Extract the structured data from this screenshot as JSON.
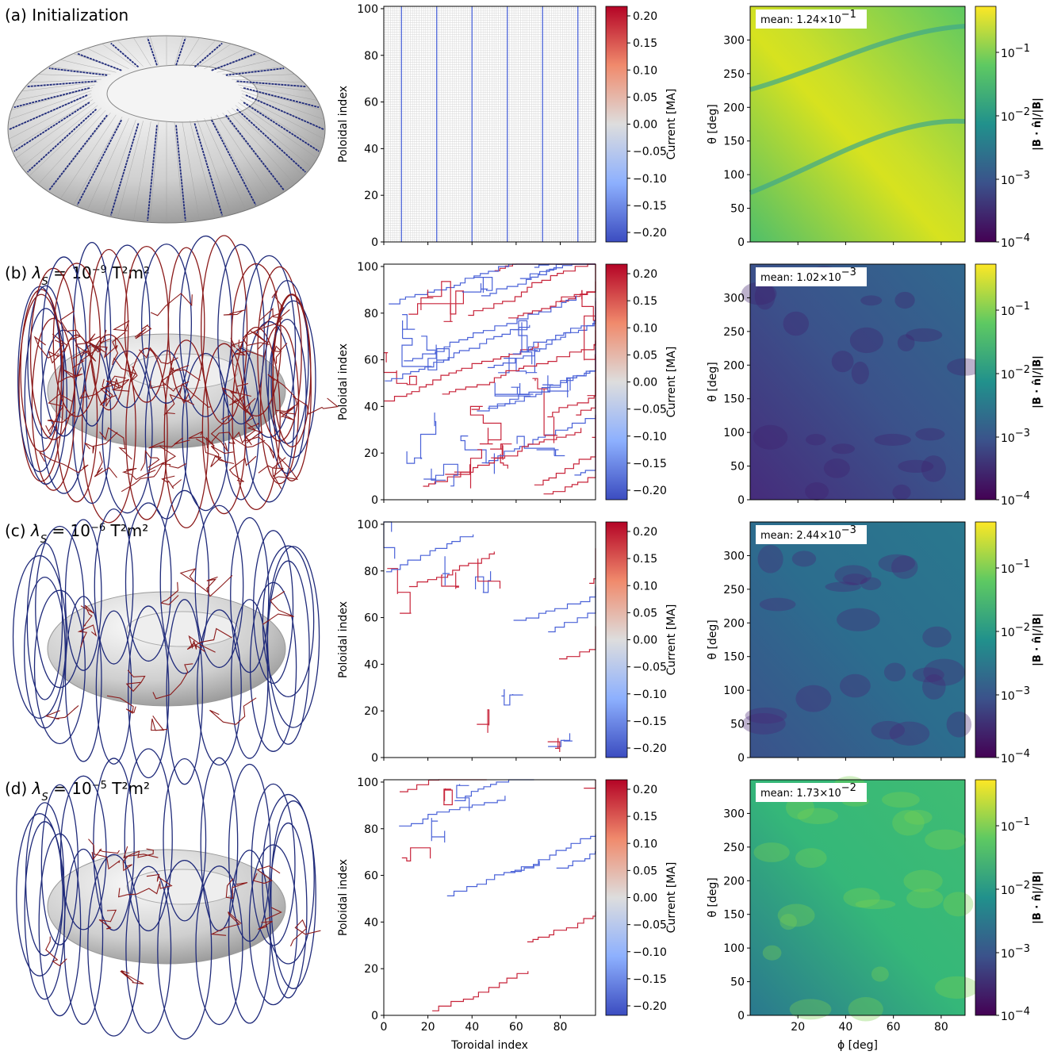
{
  "figure": {
    "rows": [
      {
        "label_prefix": "(a) ",
        "label_main": "Initialization",
        "lambda_exp": "",
        "unit_suffix": "",
        "mean_text": "mean: 1.24×10",
        "mean_exp": "−1"
      },
      {
        "label_prefix": "(b) ",
        "label_main": "λ",
        "lambda_exp": "−9",
        "unit_suffix": " T²m²",
        "mean_text": "mean: 1.02×10",
        "mean_exp": "−3"
      },
      {
        "label_prefix": "(c) ",
        "label_main": "λ",
        "lambda_exp": "−6",
        "unit_suffix": " T²m²",
        "mean_text": "mean: 2.44×10",
        "mean_exp": "−3"
      },
      {
        "label_prefix": "(d) ",
        "label_main": "λ",
        "lambda_exp": "−5",
        "unit_suffix": " T²m²",
        "mean_text": "mean: 1.73×10",
        "mean_exp": "−2"
      }
    ],
    "lambda_sub": "S",
    "lambda_eq": " = 10"
  },
  "chart_data": [
    {
      "type": "heatmap",
      "name": "current-map",
      "xlabel": "Toroidal index",
      "ylabel": "Poloidal index",
      "xlim": [
        0,
        96
      ],
      "ylim": [
        0,
        101
      ],
      "xticks": [
        0,
        20,
        40,
        60,
        80
      ],
      "yticks": [
        0,
        20,
        40,
        60,
        80,
        100
      ],
      "colorbar": {
        "label": "Current [MA]",
        "colormap": "coolwarm",
        "range": [
          -0.2,
          0.2
        ],
        "ticks": [
          "0.20",
          "0.15",
          "0.10",
          "0.05",
          "0.00",
          "−0.05",
          "−0.10",
          "−0.15",
          "−0.20"
        ],
        "colors": {
          "neg": "#3b4cc0",
          "zero": "#dddddd",
          "pos": "#b40426"
        }
      },
      "panels": [
        {
          "row": "a",
          "coil_toroidal_indices": [
            8,
            24,
            40,
            56,
            72,
            88
          ]
        },
        {
          "row": "b"
        },
        {
          "row": "c"
        },
        {
          "row": "d"
        }
      ]
    },
    {
      "type": "heatmap",
      "name": "normal-field-error",
      "xlabel": "ϕ [deg]",
      "ylabel": "θ [deg]",
      "xlim": [
        0,
        90
      ],
      "ylim": [
        0,
        350
      ],
      "xticks": [
        20,
        40,
        60,
        80
      ],
      "yticks": [
        0,
        50,
        100,
        150,
        200,
        250,
        300
      ],
      "colorbar": {
        "label": "|B · n̂|/|B|",
        "scale": "log",
        "colormap": "viridis",
        "range": [
          0.0001,
          0.5
        ],
        "ticks": [
          {
            "base": "10",
            "exp": "−1"
          },
          {
            "base": "10",
            "exp": "−2"
          },
          {
            "base": "10",
            "exp": "−3"
          },
          {
            "base": "10",
            "exp": "−4"
          }
        ]
      },
      "panels": [
        {
          "row": "a",
          "mean": "1.24×10⁻¹"
        },
        {
          "row": "b",
          "mean": "1.02×10⁻³"
        },
        {
          "row": "c",
          "mean": "2.44×10⁻³"
        },
        {
          "row": "d",
          "mean": "1.73×10⁻²"
        }
      ]
    }
  ],
  "colors": {
    "coil_blue": "#1f2a7a",
    "coil_red": "#8b1a1a",
    "contour_blue": "#4a62d8",
    "contour_red": "#c8243a",
    "torus_light": "#f2f2f2",
    "torus_dark": "#8a8a8a"
  }
}
